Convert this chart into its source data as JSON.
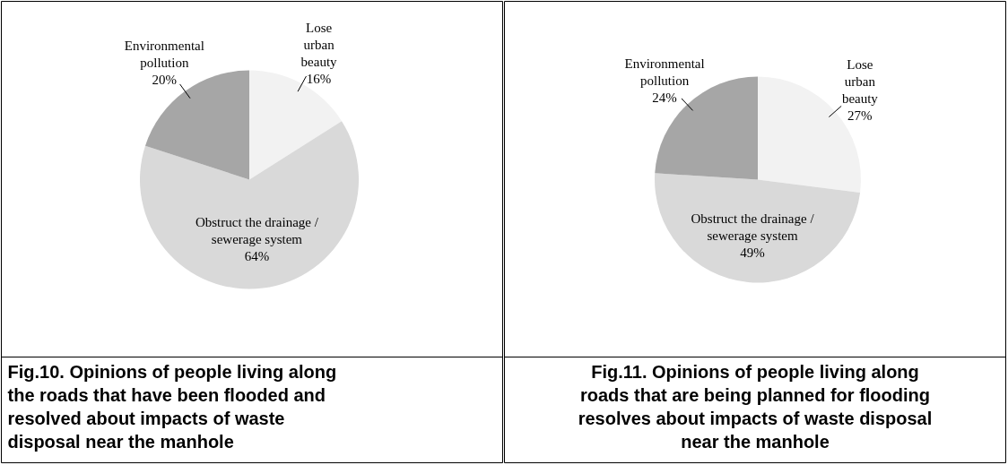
{
  "chart_data": [
    {
      "type": "pie",
      "title": "Fig.10. Opinions of people living along the roads that have been flooded and resolved about impacts of waste disposal near the manhole",
      "categories": [
        "Lose urban beauty",
        "Obstruct the drainage / sewerage system",
        "Environmental pollution"
      ],
      "values": [
        16,
        64,
        20
      ],
      "value_labels": [
        "16%",
        "64%",
        "20%"
      ],
      "colors": [
        "#f2f2f2",
        "#d9d9d9",
        "#a6a6a6"
      ]
    },
    {
      "type": "pie",
      "title": "Fig.11. Opinions of people living along roads that are being planned for flooding resolves about impacts of waste disposal near the manhole",
      "categories": [
        "Lose urban beauty",
        "Obstruct the drainage / sewerage system",
        "Environmental pollution"
      ],
      "values": [
        27,
        49,
        24
      ],
      "value_labels": [
        "27%",
        "49%",
        "24%"
      ],
      "colors": [
        "#f2f2f2",
        "#d9d9d9",
        "#a6a6a6"
      ]
    }
  ]
}
